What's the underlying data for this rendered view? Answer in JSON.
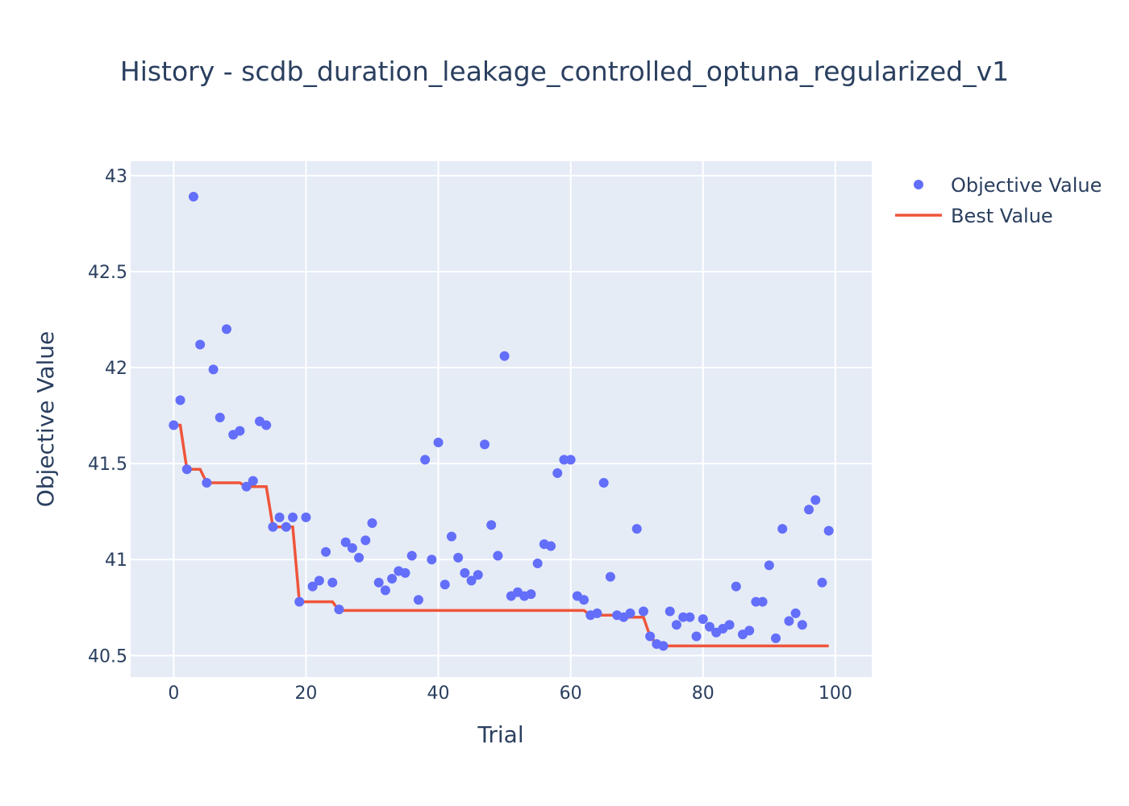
{
  "chart_data": {
    "type": "scatter",
    "title": "History - scdb_duration_leakage_controlled_optuna_regularized_v1",
    "xlabel": "Trial",
    "ylabel": "Objective Value",
    "xlim": [
      -6.5,
      105.5
    ],
    "ylim": [
      40.388,
      43.075
    ],
    "x_ticks": [
      0,
      20,
      40,
      60,
      80,
      100
    ],
    "y_ticks": [
      40.5,
      41,
      41.5,
      42,
      42.5,
      43
    ],
    "x_tick_labels": [
      "0",
      "20",
      "40",
      "60",
      "80",
      "100"
    ],
    "y_tick_labels": [
      "40.5",
      "41",
      "41.5",
      "42",
      "42.5",
      "43"
    ],
    "grid": true,
    "legend_position": "top-right",
    "colors": {
      "plot_bg": "#e5ecf6",
      "grid": "#ffffff",
      "objective": "#636efa",
      "best": "#ef553b",
      "text": "#2a3f5f"
    },
    "series": [
      {
        "name": "Objective Value",
        "mode": "markers",
        "x": [
          0,
          1,
          2,
          3,
          4,
          5,
          6,
          7,
          8,
          9,
          10,
          11,
          12,
          13,
          14,
          15,
          16,
          17,
          18,
          19,
          20,
          21,
          22,
          23,
          24,
          25,
          26,
          27,
          28,
          29,
          30,
          31,
          32,
          33,
          34,
          35,
          36,
          37,
          38,
          39,
          40,
          41,
          42,
          43,
          44,
          45,
          46,
          47,
          48,
          49,
          50,
          51,
          52,
          53,
          54,
          55,
          56,
          57,
          58,
          59,
          60,
          61,
          62,
          63,
          64,
          65,
          66,
          67,
          68,
          69,
          70,
          71,
          72,
          73,
          74,
          75,
          76,
          77,
          78,
          79,
          80,
          81,
          82,
          83,
          84,
          85,
          86,
          87,
          88,
          89,
          90,
          91,
          92,
          93,
          94,
          95,
          96,
          97,
          98,
          99
        ],
        "y": [
          41.7,
          41.83,
          41.47,
          42.89,
          42.12,
          41.4,
          41.99,
          41.74,
          42.2,
          41.65,
          41.67,
          41.38,
          41.41,
          41.72,
          41.7,
          41.17,
          41.22,
          41.17,
          41.22,
          40.78,
          41.22,
          40.86,
          40.89,
          41.04,
          40.88,
          40.74,
          41.09,
          41.06,
          41.01,
          41.1,
          41.19,
          40.88,
          40.84,
          40.9,
          40.94,
          40.93,
          41.02,
          40.79,
          41.52,
          41.0,
          41.61,
          40.87,
          41.12,
          41.01,
          40.93,
          40.89,
          40.92,
          41.6,
          41.18,
          41.02,
          42.06,
          40.81,
          40.83,
          40.81,
          40.82,
          40.98,
          41.08,
          41.07,
          41.45,
          41.52,
          41.52,
          40.81,
          40.79,
          40.71,
          40.72,
          41.4,
          40.91,
          40.71,
          40.7,
          40.72,
          41.16,
          40.73,
          40.6,
          40.56,
          40.55,
          40.73,
          40.66,
          40.7,
          40.7,
          40.6,
          40.69,
          40.65,
          40.62,
          40.64,
          40.66,
          40.86,
          40.61,
          40.63,
          40.78,
          40.78,
          40.97,
          40.59,
          41.16,
          40.68,
          40.72,
          40.66,
          41.26,
          41.31,
          40.88,
          41.15
        ]
      },
      {
        "name": "Best Value",
        "mode": "lines",
        "x": [
          0,
          1,
          2,
          3,
          4,
          5,
          6,
          7,
          8,
          9,
          10,
          11,
          12,
          13,
          14,
          15,
          16,
          17,
          18,
          19,
          20,
          21,
          22,
          23,
          24,
          25,
          26,
          27,
          28,
          29,
          30,
          31,
          32,
          33,
          34,
          35,
          36,
          37,
          38,
          39,
          40,
          41,
          42,
          43,
          44,
          45,
          46,
          47,
          48,
          49,
          50,
          51,
          52,
          53,
          54,
          55,
          56,
          57,
          58,
          59,
          60,
          61,
          62,
          63,
          64,
          65,
          66,
          67,
          68,
          69,
          70,
          71,
          72,
          73,
          74,
          75,
          76,
          77,
          78,
          79,
          80,
          81,
          82,
          83,
          84,
          85,
          86,
          87,
          88,
          89,
          90,
          91,
          92,
          93,
          94,
          95,
          96,
          97,
          98,
          99
        ],
        "y": [
          41.7,
          41.7,
          41.47,
          41.47,
          41.47,
          41.4,
          41.4,
          41.4,
          41.4,
          41.4,
          41.4,
          41.38,
          41.38,
          41.38,
          41.38,
          41.17,
          41.17,
          41.17,
          41.17,
          40.78,
          40.78,
          40.78,
          40.78,
          40.78,
          40.78,
          40.735,
          40.735,
          40.735,
          40.735,
          40.735,
          40.735,
          40.735,
          40.735,
          40.735,
          40.735,
          40.735,
          40.735,
          40.735,
          40.735,
          40.735,
          40.735,
          40.735,
          40.735,
          40.735,
          40.735,
          40.735,
          40.735,
          40.735,
          40.735,
          40.735,
          40.735,
          40.735,
          40.735,
          40.735,
          40.735,
          40.735,
          40.735,
          40.735,
          40.735,
          40.735,
          40.735,
          40.735,
          40.735,
          40.71,
          40.71,
          40.71,
          40.71,
          40.71,
          40.7,
          40.7,
          40.7,
          40.7,
          40.6,
          40.56,
          40.55,
          40.55,
          40.55,
          40.55,
          40.55,
          40.55,
          40.55,
          40.55,
          40.55,
          40.55,
          40.55,
          40.55,
          40.55,
          40.55,
          40.55,
          40.55,
          40.55,
          40.55,
          40.55,
          40.55,
          40.55,
          40.55,
          40.55,
          40.55,
          40.55,
          40.55
        ]
      }
    ]
  }
}
